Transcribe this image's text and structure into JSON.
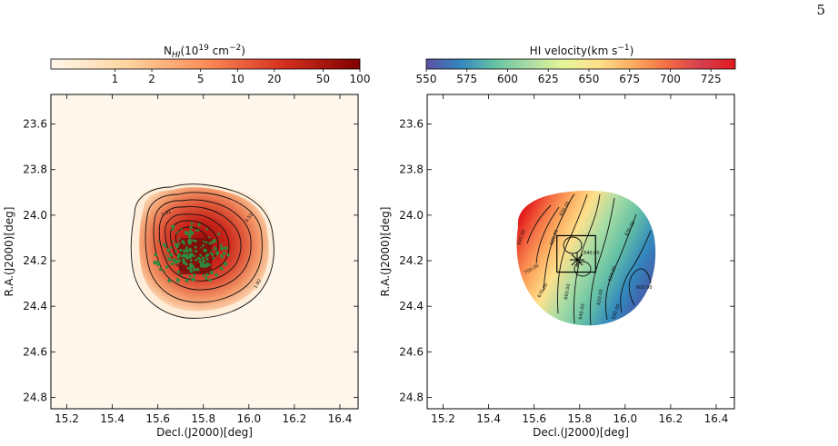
{
  "page": {
    "number": "5"
  },
  "left_panel": {
    "colorbar": {
      "label_main": "N",
      "label_sub": "HI",
      "label_rest": "(10",
      "label_exp": "19",
      "label_unit": " cm",
      "label_unit_exp": "−2",
      "label_close": ")",
      "ticks": [
        "1",
        "2",
        "5",
        "10",
        "20",
        "50",
        "100"
      ],
      "scale": "log",
      "range": [
        0.3,
        100
      ],
      "colormap": "OrRd",
      "colors": [
        "#fff7ec",
        "#fdd49e",
        "#fc8d59",
        "#d7301f",
        "#7f0000"
      ]
    }
  },
  "right_panel": {
    "colorbar": {
      "label_main": "HI velocity(km s",
      "label_exp": "−1",
      "label_close": ")",
      "ticks": [
        "550",
        "575",
        "600",
        "625",
        "650",
        "675",
        "700",
        "725"
      ],
      "range": [
        550,
        740
      ],
      "colormap": "Spectral_r",
      "colors": [
        "#5e4fa2",
        "#3288bd",
        "#66c2a5",
        "#abdda4",
        "#e6f598",
        "#fee08b",
        "#fdae61",
        "#f46d43",
        "#d53e4f",
        "#e31a1c"
      ]
    },
    "contour_labels": [
      "700.00",
      "690.00",
      "680.00",
      "670.00",
      "660.00",
      "650.00",
      "640.00",
      "630.00",
      "620.00",
      "610.00",
      "600.00",
      "590.00"
    ]
  },
  "chart_data": [
    {
      "type": "heatmap",
      "title": "",
      "xlabel": "Decl.(J2000)[deg]",
      "ylabel": "R.A.(J2000)[deg]",
      "xticks": [
        "15.2",
        "15.4",
        "15.6",
        "15.8",
        "16.0",
        "16.2",
        "16.4"
      ],
      "yticks": [
        "23.6",
        "23.8",
        "24.0",
        "24.2",
        "24.4",
        "24.6",
        "24.8"
      ],
      "xlim": [
        15.13,
        16.48
      ],
      "ylim": [
        23.47,
        24.85
      ],
      "y_inverted": true,
      "source_center": [
        15.78,
        24.18
      ],
      "contour_labels": [
        "0.52",
        "1.01",
        "1.92"
      ]
    },
    {
      "type": "heatmap",
      "title": "",
      "xlabel": "Decl.(J2000)[deg]",
      "ylabel": "R.A.(J2000)[deg]",
      "xticks": [
        "15.2",
        "15.4",
        "15.6",
        "15.8",
        "16.0",
        "16.2",
        "16.4"
      ],
      "yticks": [
        "23.6",
        "23.8",
        "24.0",
        "24.2",
        "24.4",
        "24.6",
        "24.8"
      ],
      "xlim": [
        15.13,
        16.48
      ],
      "ylim": [
        23.47,
        24.85
      ],
      "y_inverted": true,
      "source_center": [
        15.78,
        24.18
      ],
      "box": [
        15.7,
        24.09,
        15.87,
        24.25
      ]
    }
  ]
}
